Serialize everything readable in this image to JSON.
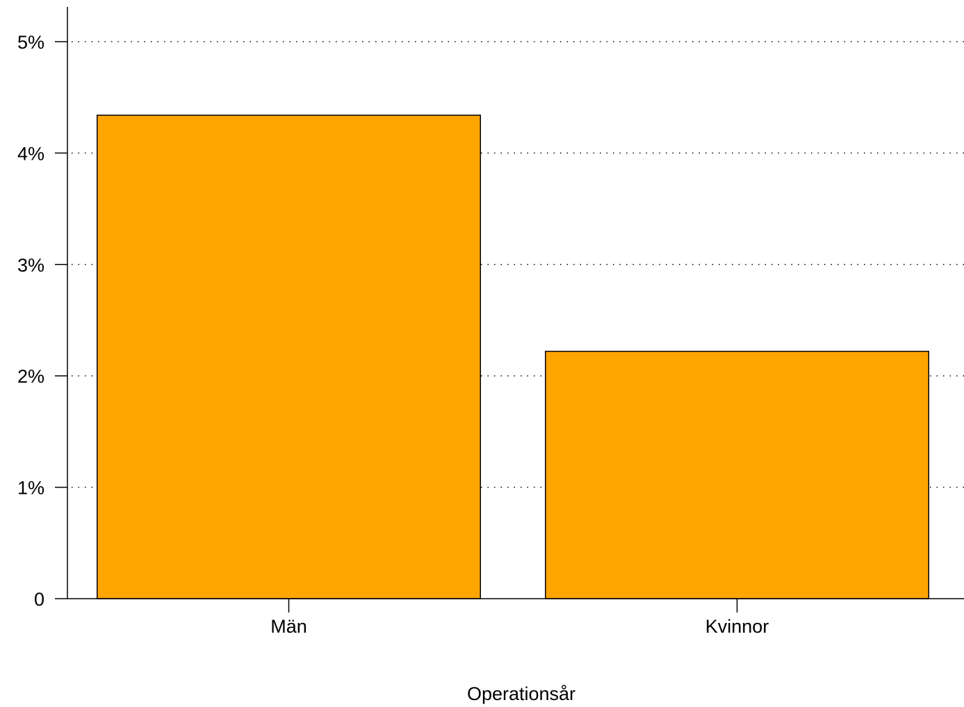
{
  "chart_data": {
    "type": "bar",
    "categories": [
      "Män",
      "Kvinnor"
    ],
    "values": [
      4.34,
      2.22
    ],
    "unit": "%",
    "xlabel": "Operationsår",
    "ylabel": "",
    "ylim": [
      0,
      5
    ],
    "yticks": [
      0,
      1,
      2,
      3,
      4,
      5
    ],
    "ytick_labels": [
      "0",
      "1%",
      "2%",
      "3%",
      "4%",
      "5%"
    ],
    "grid": "horizontal-dotted",
    "legend": "none",
    "colors": {
      "bar_fill": "#FFA500",
      "bar_stroke": "#000000",
      "grid": "#000000",
      "axis": "#000000"
    }
  }
}
